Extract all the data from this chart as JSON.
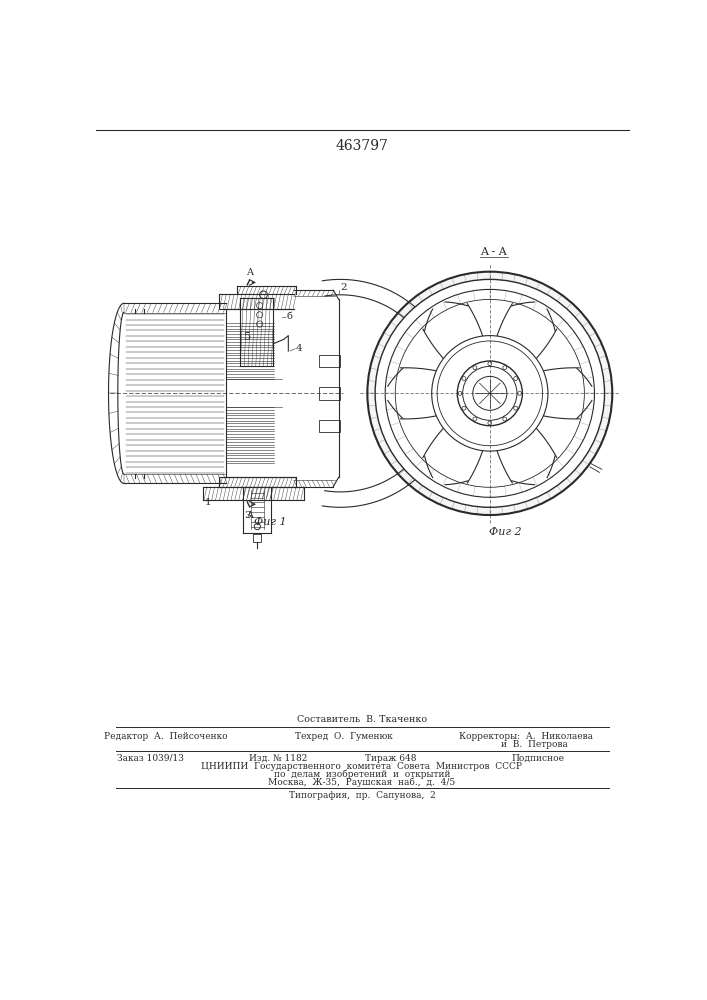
{
  "patent_number": "463797",
  "bg_color": "#ffffff",
  "line_color": "#2a2a2a",
  "fig1_label": "Фиг 1",
  "fig2_label": "Фиг 2",
  "section_label_aa": "A - A",
  "footer_line1": "Составитель  В. Ткаченко",
  "footer_line2_left": "Редактор  А.  Пейсоченко",
  "footer_line2_mid": "Техред  О.  Гуменюк",
  "footer_line2_right": "Корректоры:  А.  Николаева",
  "footer_line2_right2": "и  В.  Петрова",
  "footer_line3_col1": "Заказ 1039/13",
  "footer_line3_col2": "Изд. № 1182",
  "footer_line3_col3": "Тираж 648",
  "footer_line3_col4": "Подписное",
  "footer_line4": "ЦНИИПИ  Государственного  комитета  Совета  Министров  СССР",
  "footer_line5": "по  делам  изобретений  и  открытий",
  "footer_line6": "Москва,  Ж-35,  Раушская  наб.,  д.  4/5",
  "footer_line7": "Типография,  пр.  Сапунова,  2",
  "font_size_patent": 10,
  "font_size_footer": 6.5
}
